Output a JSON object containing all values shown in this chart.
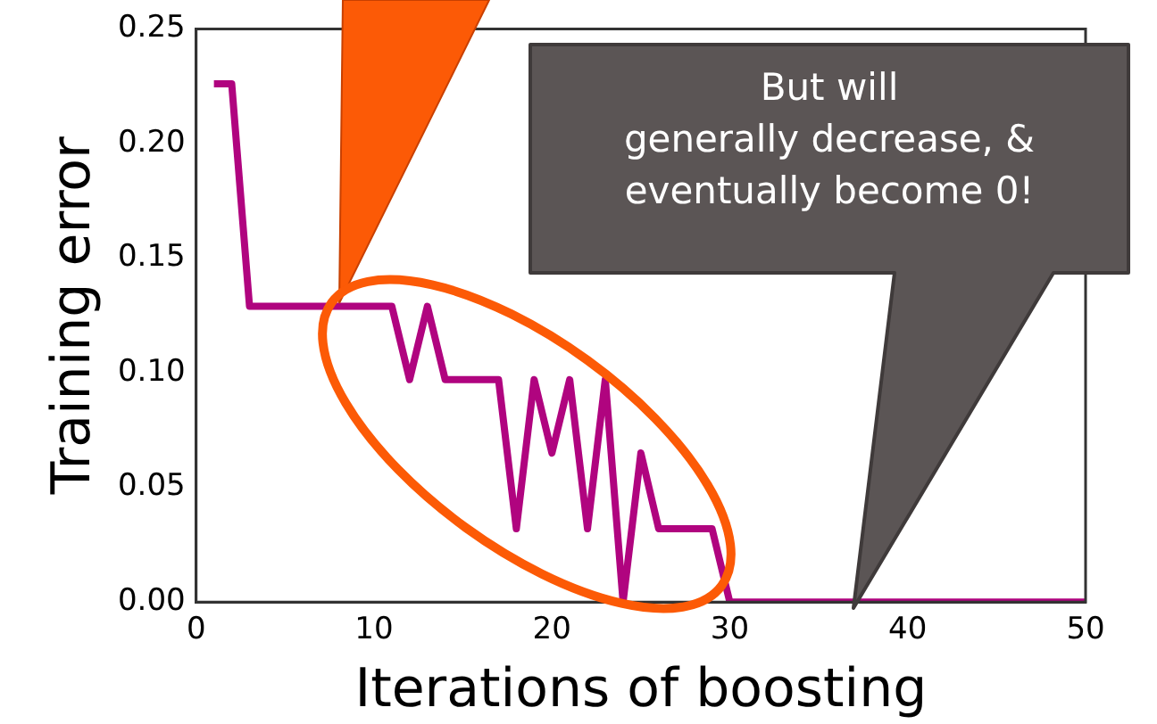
{
  "chart_data": {
    "type": "line",
    "xlabel": "Iterations of boosting",
    "ylabel": "Training error",
    "x": [
      1,
      2,
      3,
      4,
      5,
      6,
      7,
      8,
      9,
      10,
      11,
      12,
      13,
      14,
      15,
      16,
      17,
      18,
      19,
      20,
      21,
      22,
      23,
      24,
      25,
      26,
      27,
      28,
      29,
      30,
      31,
      32,
      33,
      34,
      35,
      36,
      37,
      38,
      39,
      40,
      41,
      42,
      43,
      44,
      45,
      46,
      47,
      48,
      49,
      50
    ],
    "series": [
      {
        "color": "#b0047f",
        "values": [
          0.226,
          0.226,
          0.129,
          0.129,
          0.129,
          0.129,
          0.129,
          0.129,
          0.129,
          0.129,
          0.129,
          0.097,
          0.129,
          0.097,
          0.097,
          0.097,
          0.097,
          0.032,
          0.097,
          0.065,
          0.097,
          0.032,
          0.097,
          0,
          0.065,
          0.032,
          0.032,
          0.032,
          0.032,
          0,
          0,
          0,
          0,
          0,
          0,
          0,
          0,
          0,
          0,
          0,
          0,
          0,
          0,
          0,
          0,
          0,
          0,
          0,
          0,
          0
        ]
      }
    ],
    "xlim": [
      0,
      50
    ],
    "xticks": [
      0,
      10,
      20,
      30,
      40,
      50
    ],
    "ylim": [
      0,
      0.25
    ],
    "yticks": [
      {
        "value": 0,
        "label": "0.00"
      },
      {
        "value": 0.05,
        "label": "0.05"
      },
      {
        "value": 0.1,
        "label": "0.10"
      },
      {
        "value": 0.15,
        "label": "0.15"
      },
      {
        "value": 0.2,
        "label": "0.20"
      },
      {
        "value": 0.25,
        "label": "0.25"
      }
    ],
    "grid": false,
    "legend": false,
    "marker": "none",
    "line_style": "solid",
    "annotations": [
      "But will\ngenerally decrease, &\neventually become 0!"
    ]
  }
}
